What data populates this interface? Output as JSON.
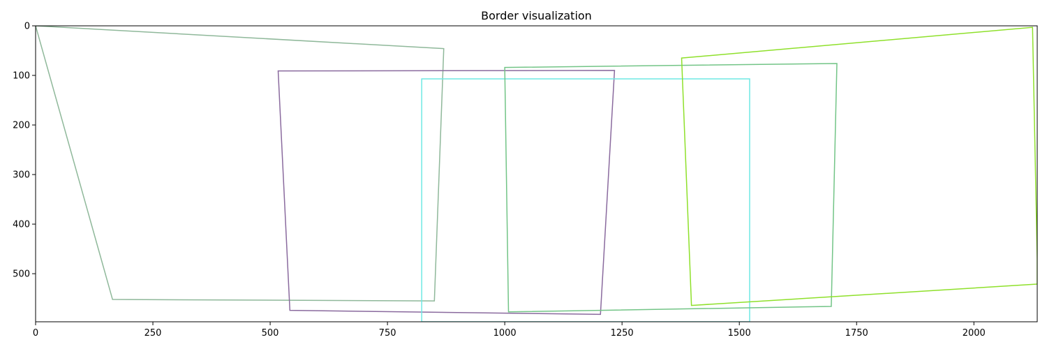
{
  "chart_data": {
    "type": "line",
    "title": "Border visualization",
    "xlabel": "",
    "ylabel": "",
    "xlim": [
      0,
      2135
    ],
    "ylim": [
      597,
      0
    ],
    "y_inverted": true,
    "grid": false,
    "legend": "none",
    "x_ticks": [
      0,
      250,
      500,
      750,
      1000,
      1250,
      1500,
      1750,
      2000
    ],
    "y_ticks": [
      0,
      100,
      200,
      300,
      400,
      500
    ],
    "polygons": [
      {
        "color": "#8FB89A",
        "points": [
          [
            0,
            0
          ],
          [
            870,
            46
          ],
          [
            850,
            555
          ],
          [
            164,
            552
          ]
        ]
      },
      {
        "color": "#8A6A9E",
        "points": [
          [
            517,
            91
          ],
          [
            1234,
            90
          ],
          [
            1204,
            582
          ],
          [
            542,
            574
          ]
        ]
      },
      {
        "color": "#6EE8E4",
        "points": [
          [
            823,
            597
          ],
          [
            823,
            107
          ],
          [
            1522,
            107
          ],
          [
            1522,
            597
          ]
        ]
      },
      {
        "color": "#72C486",
        "points": [
          [
            1000,
            84
          ],
          [
            1708,
            76
          ],
          [
            1696,
            566
          ],
          [
            1008,
            577
          ]
        ]
      },
      {
        "color": "#8EE02A",
        "points": [
          [
            1377,
            65
          ],
          [
            2125,
            3
          ],
          [
            2135,
            470
          ],
          [
            2135,
            521
          ],
          [
            1398,
            564
          ]
        ]
      }
    ]
  }
}
